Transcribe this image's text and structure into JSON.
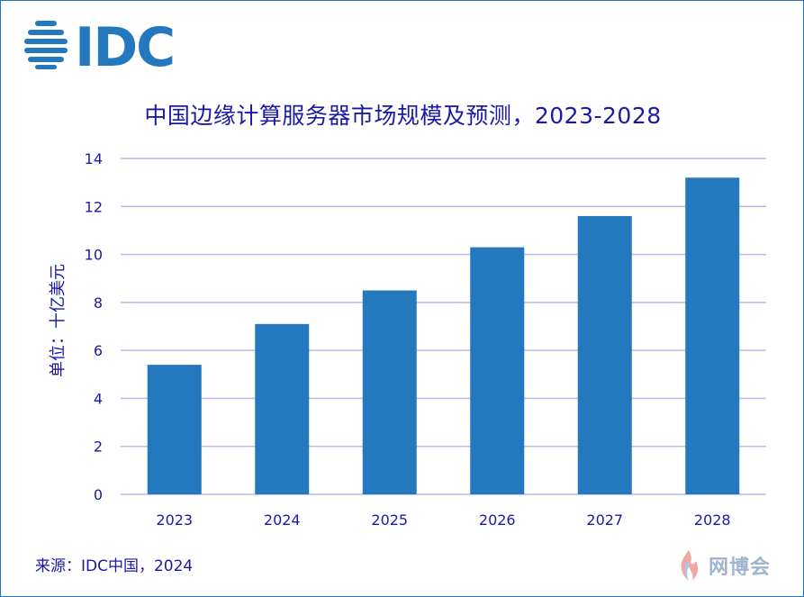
{
  "logo": {
    "text": "IDC",
    "color": "#2478be"
  },
  "title": "中国边缘计算服务器市场规模及预测，2023-2028",
  "ylabel": "单位：十亿美元",
  "source": "来源：IDC中国，2024",
  "watermark": "网博会",
  "colors": {
    "bar": "#2478be",
    "grid": "#b8b8ea",
    "text": "#1a1aa6"
  },
  "chart_data": {
    "type": "bar",
    "title": "中国边缘计算服务器市场规模及预测，2023-2028",
    "xlabel": "",
    "ylabel": "单位：十亿美元",
    "categories": [
      "2023",
      "2024",
      "2025",
      "2026",
      "2027",
      "2028"
    ],
    "values": [
      5.4,
      7.1,
      8.5,
      10.3,
      11.6,
      13.2
    ],
    "ylim": [
      0,
      14
    ],
    "yticks": [
      0,
      2,
      4,
      6,
      8,
      10,
      12,
      14
    ],
    "grid": true,
    "legend": "none"
  }
}
